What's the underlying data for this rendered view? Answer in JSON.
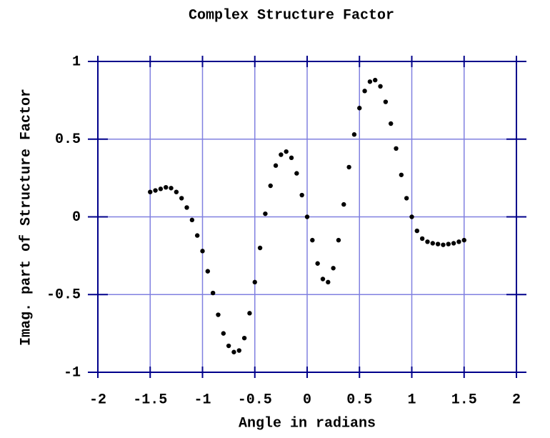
{
  "chart_data": {
    "type": "scatter",
    "title": "Complex Structure Factor",
    "x_label": "Angle in radians",
    "y_label": "Imag. part of Structure Factor",
    "xlim": [
      -2,
      2
    ],
    "ylim": [
      -1,
      1
    ],
    "xticks": [
      -2,
      -1.5,
      -1,
      -0.5,
      0,
      0.5,
      1,
      1.5,
      2
    ],
    "yticks": [
      -1,
      -0.5,
      0,
      0.5,
      1
    ],
    "grid": true,
    "color": "#000000",
    "grid_color": "#8080e0",
    "axis_color": "#00008b",
    "x": [
      -1.5,
      -1.45,
      -1.4,
      -1.35,
      -1.3,
      -1.25,
      -1.2,
      -1.15,
      -1.1,
      -1.05,
      -1,
      -0.95,
      -0.9,
      -0.85,
      -0.8,
      -0.75,
      -0.7,
      -0.65,
      -0.6,
      -0.55,
      -0.5,
      -0.45,
      -0.4,
      -0.35,
      -0.3,
      -0.25,
      -0.2,
      -0.15,
      -0.1,
      -0.05,
      0,
      0.05,
      0.1,
      0.15,
      0.2,
      0.25,
      0.3,
      0.35,
      0.4,
      0.45,
      0.5,
      0.55,
      0.6,
      0.65,
      0.7,
      0.75,
      0.8,
      0.85,
      0.9,
      0.95,
      1,
      1.05,
      1.1,
      1.15,
      1.2,
      1.25,
      1.3,
      1.35,
      1.4,
      1.45,
      1.5
    ],
    "values": [
      0.16,
      0.17,
      0.18,
      0.19,
      0.185,
      0.16,
      0.12,
      0.06,
      -0.02,
      -0.12,
      -0.22,
      -0.35,
      -0.49,
      -0.63,
      -0.75,
      -0.83,
      -0.87,
      -0.86,
      -0.78,
      -0.62,
      -0.42,
      -0.2,
      0.02,
      0.2,
      0.33,
      0.4,
      0.42,
      0.38,
      0.28,
      0.14,
      0,
      -0.15,
      -0.3,
      -0.4,
      -0.42,
      -0.33,
      -0.15,
      0.08,
      0.32,
      0.53,
      0.7,
      0.81,
      0.87,
      0.88,
      0.84,
      0.74,
      0.6,
      0.44,
      0.27,
      0.12,
      0,
      -0.09,
      -0.14,
      -0.16,
      -0.17,
      -0.175,
      -0.18,
      -0.175,
      -0.17,
      -0.16,
      -0.15
    ]
  }
}
